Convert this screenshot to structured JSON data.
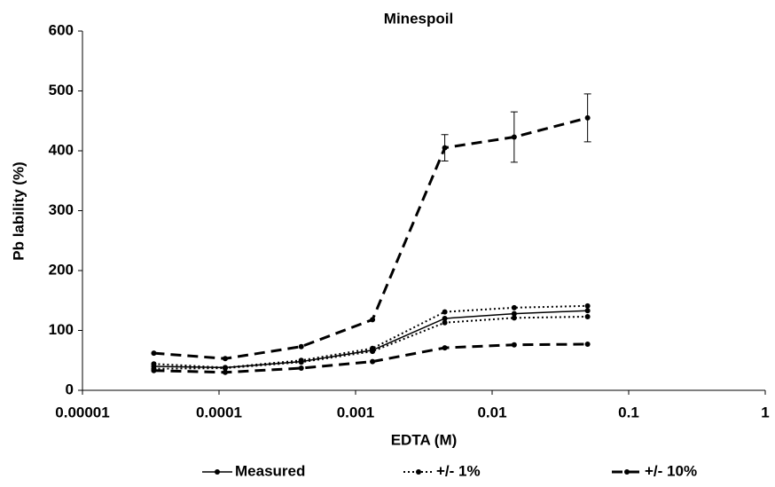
{
  "chart_data": {
    "type": "line",
    "title": "Minespoil",
    "x_label": "EDTA (M)",
    "y_label": "Pb lability (%)",
    "x_scale": "log",
    "x": [
      3.33e-05,
      0.000111,
      0.0004,
      0.00133,
      0.0045,
      0.0145,
      0.05
    ],
    "xlim": [
      1e-05,
      1
    ],
    "xticks": [
      {
        "value": 1e-05,
        "label": "0.00001"
      },
      0.0001,
      0.001,
      0.01,
      0.1,
      1
    ],
    "ylim": [
      0,
      600
    ],
    "yticks": [
      0,
      100,
      200,
      300,
      400,
      500,
      600
    ],
    "series": [
      {
        "name": "Measured",
        "color": "#000000",
        "line_style": "solid",
        "values": [
          40,
          38,
          48,
          67,
          120,
          128,
          133
        ]
      },
      {
        "name": "+/- 1%",
        "color": "#000000",
        "line_style": "dotted",
        "upper": [
          44,
          38,
          50,
          70,
          131,
          138,
          141
        ],
        "lower": [
          36,
          37,
          47,
          65,
          113,
          121,
          123
        ]
      },
      {
        "name": "+/- 10%",
        "color": "#000000",
        "line_style": "dashed",
        "upper": [
          62,
          53,
          73,
          118,
          405,
          423,
          455
        ],
        "upper_errors": [
          null,
          null,
          null,
          null,
          22,
          42,
          40
        ],
        "lower": [
          33,
          30,
          37,
          48,
          71,
          76,
          77
        ]
      }
    ]
  }
}
